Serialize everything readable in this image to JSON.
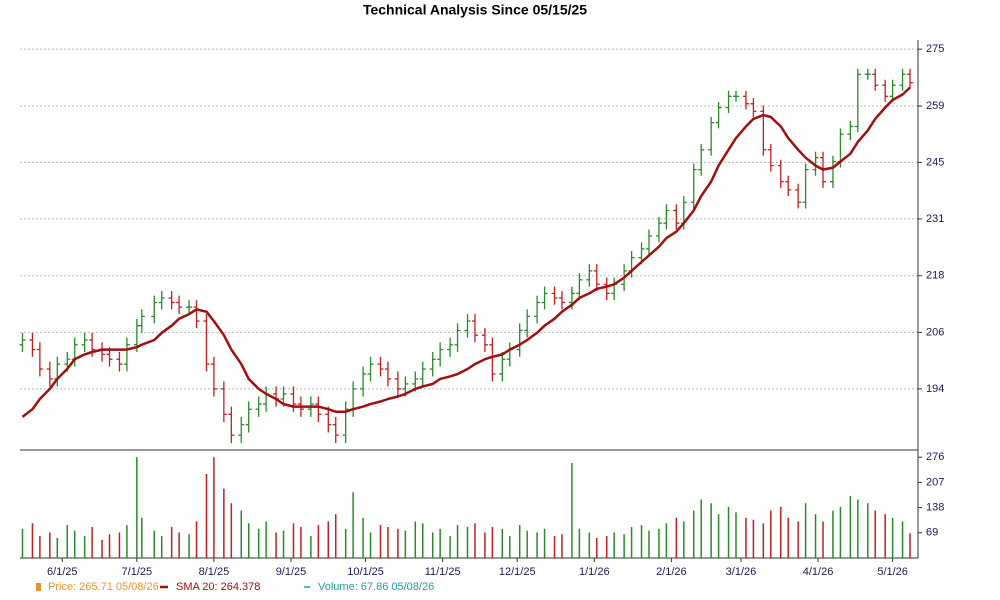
{
  "chart_data": {
    "type": "ohlc",
    "title": "Technical Analysis Since 05/15/25",
    "xlim": [
      "2025-05-15",
      "2026-05-10"
    ],
    "xticks": [
      {
        "value": "2025-06-01",
        "label": "6/1/25"
      },
      {
        "value": "2025-07-01",
        "label": "7/1/25"
      },
      {
        "value": "2025-08-01",
        "label": "8/1/25"
      },
      {
        "value": "2025-09-01",
        "label": "9/1/25"
      },
      {
        "value": "2025-10-01",
        "label": "10/1/25"
      },
      {
        "value": "2025-11-01",
        "label": "11/1/25"
      },
      {
        "value": "2025-12-01",
        "label": "12/1/25"
      },
      {
        "value": "2026-01-01",
        "label": "1/1/26"
      },
      {
        "value": "2026-02-01",
        "label": "2/1/26"
      },
      {
        "value": "2026-03-01",
        "label": "3/1/26"
      },
      {
        "value": "2026-04-01",
        "label": "4/1/26"
      },
      {
        "value": "2026-05-01",
        "label": "5/1/26"
      }
    ],
    "ylim": [
      182.2,
      277.6
    ],
    "log": true,
    "grid": true,
    "yticks": [
      {
        "value": 194,
        "label": "194"
      },
      {
        "value": 205.6,
        "label": "206"
      },
      {
        "value": 217.9,
        "label": "218"
      },
      {
        "value": 231,
        "label": "231"
      },
      {
        "value": 244.8,
        "label": "245"
      },
      {
        "value": 259.4,
        "label": "259"
      },
      {
        "value": 275,
        "label": "275"
      }
    ],
    "up_color": "#2a8a2a",
    "down_color": "#c02020",
    "x": [
      "2025-05-16",
      "2025-05-20",
      "2025-05-23",
      "2025-05-27",
      "2025-05-30",
      "2025-06-03",
      "2025-06-06",
      "2025-06-10",
      "2025-06-13",
      "2025-06-17",
      "2025-06-20",
      "2025-06-24",
      "2025-06-27",
      "2025-07-01",
      "2025-07-03",
      "2025-07-08",
      "2025-07-11",
      "2025-07-15",
      "2025-07-18",
      "2025-07-22",
      "2025-07-25",
      "2025-07-29",
      "2025-08-01",
      "2025-08-05",
      "2025-08-08",
      "2025-08-12",
      "2025-08-15",
      "2025-08-19",
      "2025-08-22",
      "2025-08-26",
      "2025-08-29",
      "2025-09-02",
      "2025-09-05",
      "2025-09-09",
      "2025-09-12",
      "2025-09-16",
      "2025-09-19",
      "2025-09-23",
      "2025-09-26",
      "2025-09-30",
      "2025-10-03",
      "2025-10-07",
      "2025-10-10",
      "2025-10-14",
      "2025-10-17",
      "2025-10-21",
      "2025-10-24",
      "2025-10-28",
      "2025-10-31",
      "2025-11-04",
      "2025-11-07",
      "2025-11-11",
      "2025-11-14",
      "2025-11-18",
      "2025-11-21",
      "2025-11-25",
      "2025-11-28",
      "2025-12-02",
      "2025-12-05",
      "2025-12-09",
      "2025-12-12",
      "2025-12-16",
      "2025-12-19",
      "2025-12-23",
      "2025-12-26",
      "2025-12-30",
      "2026-01-02",
      "2026-01-06",
      "2026-01-09",
      "2026-01-13",
      "2026-01-16",
      "2026-01-20",
      "2026-01-23",
      "2026-01-27",
      "2026-01-30",
      "2026-02-03",
      "2026-02-06",
      "2026-02-10",
      "2026-02-13",
      "2026-02-17",
      "2026-02-20",
      "2026-02-24",
      "2026-02-27",
      "2026-03-03",
      "2026-03-06",
      "2026-03-10",
      "2026-03-13",
      "2026-03-17",
      "2026-03-20",
      "2026-03-24",
      "2026-03-27",
      "2026-03-31",
      "2026-04-03",
      "2026-04-07",
      "2026-04-10",
      "2026-04-14",
      "2026-04-17",
      "2026-04-21",
      "2026-04-24",
      "2026-04-28",
      "2026-05-01",
      "2026-05-05",
      "2026-05-08"
    ],
    "open": [
      203,
      204,
      202,
      198,
      196,
      199,
      200,
      203,
      204,
      202,
      201,
      200,
      199,
      203,
      207,
      209,
      212,
      213,
      212,
      211,
      211,
      208,
      199,
      194,
      189,
      185,
      187,
      190,
      191,
      193,
      192,
      193,
      191,
      190,
      191,
      189,
      187,
      185,
      190,
      194,
      197,
      199,
      198,
      196,
      194,
      195,
      196,
      198,
      200,
      202,
      203,
      206,
      208,
      205,
      203,
      197,
      200,
      202,
      206,
      209,
      212,
      214,
      213,
      212,
      214,
      217,
      219,
      216,
      214,
      216,
      219,
      222,
      224,
      227,
      230,
      233,
      230,
      235,
      243,
      248,
      255,
      259,
      262,
      262,
      260,
      258,
      248,
      244,
      240,
      238,
      235,
      243,
      246,
      240,
      245,
      252,
      254,
      268,
      268,
      265,
      262,
      265,
      268
    ],
    "high": [
      205.5,
      205.5,
      203.5,
      199.5,
      200.5,
      201.5,
      204.5,
      205.5,
      205.5,
      203.5,
      202.5,
      201.5,
      204.5,
      208.5,
      210.5,
      213.5,
      214.5,
      214.5,
      213.5,
      212.5,
      212.5,
      209.5,
      200.5,
      195.5,
      190.5,
      188.5,
      191.5,
      192.5,
      194.5,
      194.5,
      194.5,
      194.5,
      192.5,
      192.5,
      192.5,
      190.5,
      188.5,
      191.5,
      195.5,
      198.5,
      200.5,
      200.5,
      199.5,
      197.5,
      196.5,
      197.5,
      199.5,
      201.5,
      203.5,
      204.5,
      207.5,
      209.5,
      209.5,
      206.5,
      204.5,
      201.5,
      203.5,
      207.5,
      210.5,
      213.5,
      215.5,
      215.5,
      214.5,
      215.5,
      218.5,
      220.5,
      220.5,
      217.5,
      217.5,
      220.5,
      223.5,
      225.5,
      228.5,
      231.5,
      234.5,
      234.5,
      236.5,
      244.5,
      249.5,
      256.5,
      260.5,
      263.5,
      263.5,
      263.5,
      261.5,
      259.5,
      249.5,
      245.5,
      241.5,
      239.5,
      244.5,
      247.5,
      247.5,
      246.5,
      253.5,
      255.5,
      269.5,
      269.5,
      269.5,
      266.5,
      266.5,
      269.5,
      269.5
    ],
    "low": [
      201.5,
      200.5,
      196.5,
      194.5,
      194.5,
      197.5,
      198.5,
      201.5,
      200.5,
      199.5,
      198.5,
      197.5,
      197.5,
      201.5,
      205.5,
      207.5,
      210.5,
      210.5,
      209.5,
      209.5,
      206.5,
      197.5,
      192.5,
      187.5,
      183.5,
      183.5,
      185.5,
      188.5,
      189.5,
      190.5,
      190.5,
      189.5,
      188.5,
      188.5,
      187.5,
      185.5,
      183.5,
      183.5,
      188.5,
      192.5,
      195.5,
      196.5,
      194.5,
      192.5,
      192.5,
      193.5,
      194.5,
      196.5,
      198.5,
      200.5,
      201.5,
      204.5,
      203.5,
      201.5,
      195.5,
      195.5,
      198.5,
      200.5,
      204.5,
      207.5,
      210.5,
      211.5,
      210.5,
      210.5,
      212.5,
      215.5,
      214.5,
      212.5,
      212.5,
      214.5,
      217.5,
      220.5,
      222.5,
      225.5,
      228.5,
      228.5,
      228.5,
      233.5,
      241.5,
      246.5,
      253.5,
      257.5,
      260.5,
      258.5,
      256.5,
      246.5,
      242.5,
      238.5,
      236.5,
      233.5,
      233.5,
      241.5,
      238.5,
      238.5,
      243.5,
      250.5,
      252.5,
      266.5,
      263.5,
      260.5,
      260.5,
      263.5,
      264.2
    ],
    "close": [
      204,
      202,
      198,
      196,
      199,
      200,
      203,
      204,
      202,
      201,
      200,
      199,
      203,
      207,
      209,
      212,
      213,
      212,
      211,
      211,
      208,
      199,
      194,
      189,
      185,
      187,
      190,
      191,
      193,
      192,
      193,
      191,
      190,
      191,
      189,
      187,
      185,
      190,
      194,
      197,
      199,
      198,
      196,
      194,
      195,
      196,
      198,
      200,
      202,
      203,
      206,
      208,
      205,
      203,
      197,
      200,
      202,
      206,
      209,
      212,
      214,
      213,
      212,
      214,
      217,
      219,
      216,
      214,
      216,
      219,
      222,
      224,
      227,
      230,
      233,
      230,
      235,
      243,
      248,
      255,
      259,
      262,
      262,
      260,
      258,
      248,
      244,
      240,
      238,
      235,
      243,
      246,
      240,
      245,
      252,
      254,
      268,
      268,
      265,
      262,
      265,
      268,
      265.71
    ],
    "series": [
      {
        "name": "SMA 20",
        "color": "#a01010",
        "values": [
          188.5,
          190,
          192,
          194,
          196,
          198,
          200,
          201,
          201.5,
          202,
          202,
          202,
          202,
          202.5,
          203,
          204,
          205.5,
          207,
          208.5,
          209.5,
          210.5,
          210,
          208,
          205,
          202,
          199,
          196,
          194,
          193,
          192,
          191,
          190.5,
          190.5,
          190.5,
          190.5,
          190,
          189.5,
          189.5,
          190,
          190.5,
          191,
          191.5,
          192,
          192.5,
          193,
          194,
          194.5,
          195,
          196,
          196.5,
          197,
          198,
          199,
          200,
          200.5,
          201,
          202,
          203,
          204,
          205.5,
          207,
          208.5,
          210,
          211.5,
          213,
          214,
          215,
          215.5,
          216,
          217.5,
          219,
          221,
          222.5,
          224.5,
          226.5,
          228,
          230,
          233,
          236.5,
          240,
          244,
          248,
          251,
          254,
          256,
          257,
          256.5,
          254,
          251,
          248,
          246,
          244,
          243,
          243.5,
          245,
          247,
          250,
          253,
          256,
          259,
          261,
          262.5,
          264.378
        ]
      }
    ],
    "volume": {
      "ylim": [
        0,
        282
      ],
      "yticks": [
        69,
        138,
        207,
        276
      ],
      "values": [
        80,
        95,
        60,
        70,
        55,
        90,
        75,
        60,
        85,
        50,
        65,
        70,
        90,
        276,
        110,
        75,
        60,
        85,
        70,
        65,
        100,
        230,
        276,
        190,
        150,
        130,
        95,
        80,
        100,
        70,
        75,
        95,
        85,
        60,
        90,
        100,
        120,
        80,
        180,
        110,
        70,
        90,
        85,
        80,
        75,
        100,
        95,
        70,
        80,
        60,
        90,
        85,
        95,
        70,
        85,
        80,
        60,
        90,
        75,
        70,
        80,
        60,
        65,
        260,
        80,
        70,
        55,
        60,
        70,
        65,
        85,
        90,
        75,
        80,
        95,
        110,
        100,
        130,
        160,
        150,
        120,
        140,
        125,
        110,
        105,
        95,
        130,
        140,
        110,
        100,
        150,
        120,
        100,
        130,
        140,
        170,
        160,
        150,
        130,
        120,
        110,
        100,
        67.86
      ]
    },
    "legend": [
      {
        "label": "Price: 265.71  05/08/26",
        "color": "#e8962a"
      },
      {
        "label": "SMA 20: 264.378",
        "color": "#a01010"
      },
      {
        "label": "Volume: 67.86  05/08/26",
        "color": "#20a0a0"
      }
    ]
  }
}
